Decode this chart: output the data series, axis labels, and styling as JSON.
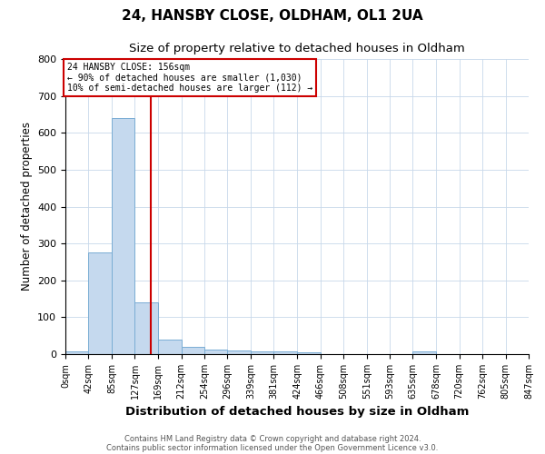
{
  "title": "24, HANSBY CLOSE, OLDHAM, OL1 2UA",
  "subtitle": "Size of property relative to detached houses in Oldham",
  "xlabel": "Distribution of detached houses by size in Oldham",
  "ylabel": "Number of detached properties",
  "bin_edges": [
    0,
    42,
    85,
    127,
    169,
    212,
    254,
    296,
    339,
    381,
    424,
    466,
    508,
    551,
    593,
    635,
    678,
    720,
    762,
    805,
    847
  ],
  "bar_heights": [
    8,
    275,
    640,
    140,
    40,
    20,
    13,
    10,
    8,
    8,
    5,
    0,
    0,
    0,
    0,
    8,
    0,
    0,
    0,
    0
  ],
  "bar_color": "#c5d9ee",
  "bar_edge_color": "#7aadd4",
  "vline_x": 156,
  "vline_color": "#cc0000",
  "annotation_text_line1": "24 HANSBY CLOSE: 156sqm",
  "annotation_text_line2": "← 90% of detached houses are smaller (1,030)",
  "annotation_text_line3": "10% of semi-detached houses are larger (112) →",
  "annotation_box_color": "#cc0000",
  "ylim": [
    0,
    800
  ],
  "footnote1": "Contains HM Land Registry data © Crown copyright and database right 2024.",
  "footnote2": "Contains public sector information licensed under the Open Government Licence v3.0.",
  "title_fontsize": 11,
  "subtitle_fontsize": 9.5,
  "xlabel_fontsize": 9.5,
  "ylabel_fontsize": 8.5,
  "annotation_fontsize": 7,
  "tick_fontsize": 7,
  "ytick_fontsize": 8,
  "tick_labels": [
    "0sqm",
    "42sqm",
    "85sqm",
    "127sqm",
    "169sqm",
    "212sqm",
    "254sqm",
    "296sqm",
    "339sqm",
    "381sqm",
    "424sqm",
    "466sqm",
    "508sqm",
    "551sqm",
    "593sqm",
    "635sqm",
    "678sqm",
    "720sqm",
    "762sqm",
    "805sqm",
    "847sqm"
  ]
}
